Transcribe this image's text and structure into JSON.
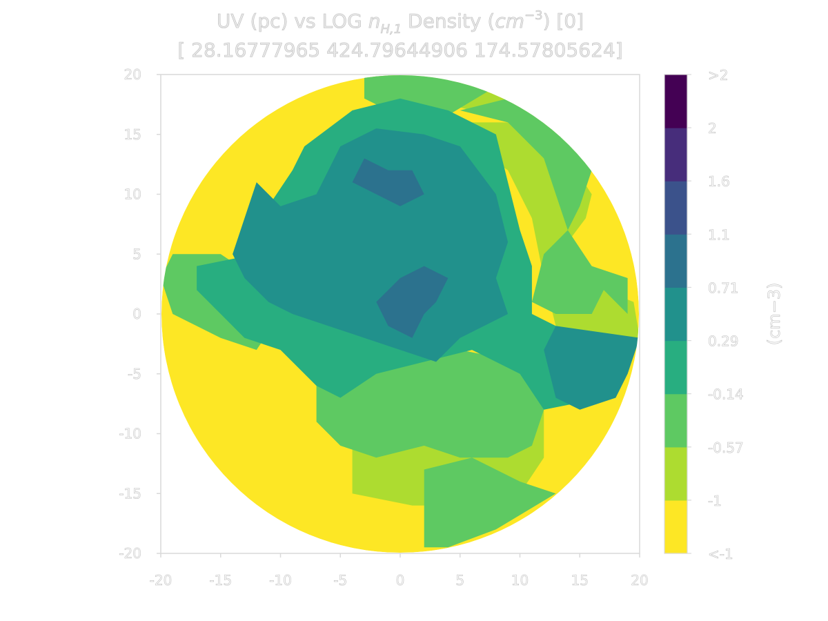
{
  "chart_data": {
    "type": "heatmap",
    "title_lines": [
      "UV (pc) vs LOG n_{H,1} Density (cm^{-3}) [0]",
      "[ 28.16777965 424.79644906 174.57805624]"
    ],
    "title_parts": {
      "prefix": "UV (pc) vs LOG ",
      "var": "n",
      "var_sub": "H,1",
      "middle": " Density (",
      "unit_base": "cm",
      "unit_exp": "−3",
      "suffix": ") [0]"
    },
    "xlabel": "",
    "ylabel": "",
    "xlim": [
      -20,
      20
    ],
    "ylim": [
      -20,
      20
    ],
    "xticks": [
      -20,
      -15,
      -10,
      -5,
      0,
      5,
      10,
      15,
      20
    ],
    "yticks": [
      -20,
      -15,
      -10,
      -5,
      0,
      5,
      10,
      15,
      20
    ],
    "xtick_labels": [
      "-20",
      "-15",
      "-10",
      "-5",
      "0",
      "5",
      "10",
      "15",
      "20"
    ],
    "ytick_labels": [
      "-20",
      "-15",
      "-10",
      "-5",
      "0",
      "5",
      "10",
      "15",
      "20"
    ],
    "colorbar": {
      "label": "(cm−3)",
      "tick_labels": [
        "<-1",
        "-1",
        "-0.57",
        "-0.14",
        "0.29",
        "0.71",
        "1.1",
        "1.6",
        "2",
        ">2"
      ],
      "levels": [
        -1.0,
        -0.57,
        -0.14,
        0.29,
        0.71,
        1.1,
        1.6,
        2.0
      ],
      "colors": [
        "#fde725",
        "#addc30",
        "#5ec962",
        "#28ae80",
        "#21918c",
        "#2c728e",
        "#3b528b",
        "#472d7b",
        "#440154"
      ]
    },
    "regions": [
      {
        "level": 1,
        "points": [
          [
            -3,
            20
          ],
          [
            -1,
            20
          ],
          [
            8,
            19
          ],
          [
            12,
            16.5
          ],
          [
            10,
            16
          ],
          [
            6,
            17
          ],
          [
            2,
            18
          ],
          [
            0,
            17.5
          ],
          [
            -3,
            18
          ]
        ]
      },
      {
        "level": 1,
        "points": [
          [
            3,
            16
          ],
          [
            13,
            16
          ],
          [
            14,
            13
          ],
          [
            16,
            10
          ],
          [
            15.5,
            8
          ],
          [
            14,
            6
          ],
          [
            15,
            3
          ],
          [
            17,
            2
          ],
          [
            19.5,
            1
          ],
          [
            20,
            -2
          ],
          [
            15,
            -3
          ],
          [
            13,
            -1
          ],
          [
            12,
            3
          ],
          [
            11,
            8
          ],
          [
            9,
            12
          ],
          [
            6,
            14
          ],
          [
            3,
            15
          ]
        ]
      },
      {
        "level": 1,
        "points": [
          [
            1,
            -4
          ],
          [
            10,
            -4
          ],
          [
            12,
            -8
          ],
          [
            12,
            -12
          ],
          [
            10,
            -15
          ],
          [
            6,
            -16
          ],
          [
            1,
            -16
          ],
          [
            -4,
            -15
          ],
          [
            -4,
            -11
          ],
          [
            -2,
            -8
          ],
          [
            0,
            -6
          ]
        ]
      },
      {
        "level": 2,
        "points": [
          [
            -3,
            20
          ],
          [
            4,
            20
          ],
          [
            8,
            19
          ],
          [
            3,
            16
          ],
          [
            -1,
            17
          ],
          [
            -3,
            18
          ]
        ]
      },
      {
        "level": 2,
        "points": [
          [
            -19,
            5
          ],
          [
            -15,
            5
          ],
          [
            -12,
            3
          ],
          [
            -10,
            0
          ],
          [
            -12,
            -3
          ],
          [
            -15,
            -2
          ],
          [
            -19,
            0
          ],
          [
            -20,
            3
          ]
        ]
      },
      {
        "level": 2,
        "points": [
          [
            -7,
            -4
          ],
          [
            1,
            -4
          ],
          [
            5,
            -3
          ],
          [
            10,
            -4
          ],
          [
            12,
            -8
          ],
          [
            11,
            -11
          ],
          [
            9,
            -12
          ],
          [
            5,
            -12
          ],
          [
            2,
            -11
          ],
          [
            -2,
            -12
          ],
          [
            -5,
            -11
          ],
          [
            -7,
            -9
          ]
        ]
      },
      {
        "level": 2,
        "points": [
          [
            2,
            -13
          ],
          [
            6,
            -12
          ],
          [
            10,
            -14
          ],
          [
            13,
            -15
          ],
          [
            8,
            -18
          ],
          [
            4,
            -19.5
          ],
          [
            2,
            -19.5
          ]
        ]
      },
      {
        "level": 2,
        "points": [
          [
            5,
            17
          ],
          [
            9,
            16
          ],
          [
            12,
            13
          ],
          [
            13,
            10
          ],
          [
            14,
            7
          ],
          [
            12,
            5
          ],
          [
            11,
            1
          ],
          [
            13,
            0
          ],
          [
            16,
            0
          ],
          [
            17,
            2
          ],
          [
            19,
            0
          ],
          [
            19,
            3
          ],
          [
            16,
            4
          ],
          [
            14,
            7
          ],
          [
            15,
            9
          ],
          [
            16,
            12
          ],
          [
            13,
            16
          ],
          [
            9,
            18
          ]
        ]
      },
      {
        "level": 3,
        "points": [
          [
            -8,
            14
          ],
          [
            -4,
            17
          ],
          [
            0,
            18
          ],
          [
            4,
            17
          ],
          [
            8,
            15
          ],
          [
            9,
            11
          ],
          [
            10,
            7
          ],
          [
            11,
            4
          ],
          [
            11,
            0
          ],
          [
            13,
            -1
          ],
          [
            19,
            -2
          ],
          [
            19,
            -4
          ],
          [
            17,
            -7
          ],
          [
            12,
            -8
          ],
          [
            10,
            -5
          ],
          [
            6,
            -3
          ],
          [
            2,
            -4
          ],
          [
            -2,
            -5
          ],
          [
            -5,
            -7
          ],
          [
            -7,
            -6
          ],
          [
            -10,
            -3
          ],
          [
            -13,
            -2
          ],
          [
            -15,
            0
          ],
          [
            -17,
            2
          ],
          [
            -17,
            4
          ],
          [
            -12,
            5
          ],
          [
            -11,
            9
          ],
          [
            -9,
            12
          ]
        ]
      },
      {
        "level": 4,
        "points": [
          [
            -12,
            11
          ],
          [
            -10,
            9
          ],
          [
            -7,
            10
          ],
          [
            -5,
            14
          ],
          [
            -2,
            15.5
          ],
          [
            2,
            15
          ],
          [
            5,
            14
          ],
          [
            8,
            10
          ],
          [
            9,
            6
          ],
          [
            8,
            3
          ],
          [
            9,
            0
          ],
          [
            7,
            -1
          ],
          [
            5,
            -2
          ],
          [
            3,
            -4
          ],
          [
            0,
            -3
          ],
          [
            -3,
            -2
          ],
          [
            -6,
            -1
          ],
          [
            -9,
            0
          ],
          [
            -11,
            1
          ],
          [
            -13,
            3
          ],
          [
            -14,
            5
          ],
          [
            -13,
            8
          ]
        ]
      },
      {
        "level": 4,
        "points": [
          [
            13,
            -1
          ],
          [
            20,
            -2
          ],
          [
            19,
            -5
          ],
          [
            18,
            -7
          ],
          [
            15,
            -8
          ],
          [
            13,
            -7
          ],
          [
            12,
            -3
          ]
        ]
      },
      {
        "level": 5,
        "points": [
          [
            -2,
            1
          ],
          [
            0,
            3
          ],
          [
            2,
            4
          ],
          [
            4,
            3
          ],
          [
            3,
            1
          ],
          [
            2,
            0
          ],
          [
            1,
            -2
          ],
          [
            -1,
            -1
          ]
        ]
      },
      {
        "level": 5,
        "points": [
          [
            -3,
            13
          ],
          [
            -1,
            12
          ],
          [
            1,
            12
          ],
          [
            2,
            10
          ],
          [
            0,
            9
          ],
          [
            -2,
            10
          ],
          [
            -4,
            11
          ]
        ]
      }
    ]
  }
}
